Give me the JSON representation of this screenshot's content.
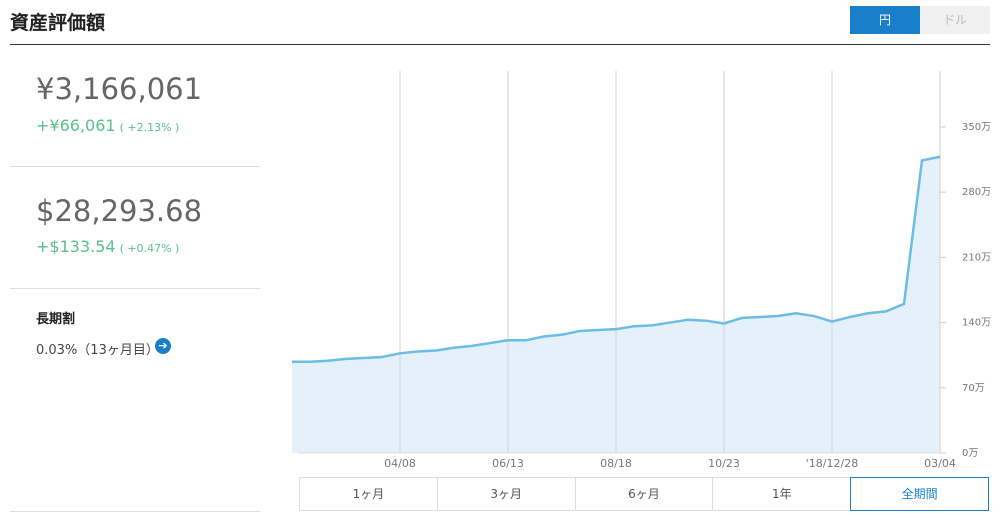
{
  "header": {
    "title": "資産評価額",
    "currency_toggle": [
      "円",
      "ドル"
    ]
  },
  "summary": {
    "jpy": {
      "value": "¥3,166,061",
      "change": "+¥66,061",
      "change_pct": "( +2.13% )"
    },
    "usd": {
      "value": "$28,293.68",
      "change": "+$133.54",
      "change_pct": "( +0.47% )"
    },
    "long_term": {
      "title": "長期割",
      "value": "0.03%（13ヶ月目）"
    }
  },
  "periods": [
    "1ヶ月",
    "3ヶ月",
    "6ヶ月",
    "1年",
    "全期間"
  ],
  "chart_data": {
    "type": "line",
    "categories": [
      null,
      null,
      null,
      null,
      null,
      null,
      "04/08",
      null,
      null,
      null,
      null,
      null,
      "06/13",
      null,
      null,
      null,
      null,
      null,
      "08/18",
      null,
      null,
      null,
      null,
      null,
      "10/23",
      null,
      null,
      null,
      null,
      null,
      "'18/12/28",
      null,
      null,
      null,
      null,
      null,
      "03/04"
    ],
    "series": [
      {
        "color": "#6bbde3",
        "values": [
          98,
          98,
          99,
          101,
          102,
          103,
          107,
          109,
          110,
          113,
          115,
          118,
          121,
          121,
          125,
          127,
          131,
          132,
          133,
          136,
          137,
          140,
          143,
          142,
          139,
          145,
          146,
          147,
          150,
          147,
          141,
          146,
          150,
          152,
          160,
          314,
          318
        ]
      }
    ],
    "area_color": "#e4f1fa",
    "ylim": [
      0,
      410
    ],
    "yticks": [
      {
        "value": 0,
        "label": "0万"
      },
      {
        "value": 70,
        "label": "70万"
      },
      {
        "value": 140,
        "label": "140万"
      },
      {
        "value": 210,
        "label": "210万"
      },
      {
        "value": 280,
        "label": "280万"
      },
      {
        "value": 350,
        "label": "350万"
      }
    ],
    "grid": true
  }
}
